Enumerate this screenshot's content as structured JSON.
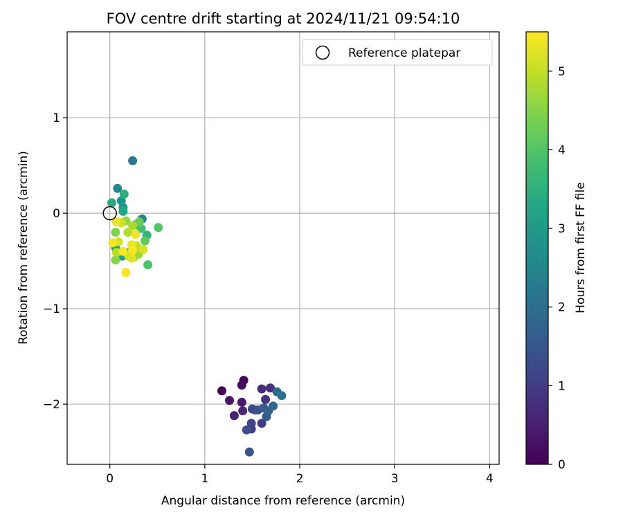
{
  "chart_data": {
    "type": "scatter",
    "title": "FOV centre drift starting at 2024/11/21 09:54:10",
    "xlabel": "Angular distance from reference (arcmin)",
    "ylabel": "Rotation from reference (arcmin)",
    "xlim": [
      -0.45,
      4.1
    ],
    "ylim": [
      -2.63,
      1.9
    ],
    "xticks": [
      "0",
      "1",
      "2",
      "3",
      "4"
    ],
    "yticks": [
      "−2",
      "−1",
      "0",
      "1"
    ],
    "grid": true,
    "legend": {
      "placement": "top-right",
      "label": "Reference platepar"
    },
    "reference_point": {
      "x": 0.0,
      "y": 0.0
    },
    "colorbar": {
      "label": "Hours from first FF file",
      "range": [
        0,
        5.5
      ],
      "ticks": [
        "0",
        "1",
        "2",
        "3",
        "4",
        "5"
      ],
      "colormap": "viridis"
    },
    "points": [
      {
        "x": 1.18,
        "y": -1.86,
        "hours": 0.0
      },
      {
        "x": 1.41,
        "y": -1.75,
        "hours": 0.05
      },
      {
        "x": 1.39,
        "y": -1.8,
        "hours": 0.15
      },
      {
        "x": 1.26,
        "y": -1.96,
        "hours": 0.35
      },
      {
        "x": 1.39,
        "y": -1.98,
        "hours": 0.4
      },
      {
        "x": 1.31,
        "y": -2.12,
        "hours": 0.55
      },
      {
        "x": 1.4,
        "y": -2.07,
        "hours": 0.6
      },
      {
        "x": 1.6,
        "y": -1.84,
        "hours": 0.7
      },
      {
        "x": 1.69,
        "y": -1.83,
        "hours": 0.75
      },
      {
        "x": 1.64,
        "y": -1.95,
        "hours": 0.85
      },
      {
        "x": 1.6,
        "y": -2.2,
        "hours": 0.95
      },
      {
        "x": 1.49,
        "y": -2.26,
        "hours": 1.0
      },
      {
        "x": 1.49,
        "y": -2.2,
        "hours": 1.1
      },
      {
        "x": 1.53,
        "y": -2.06,
        "hours": 1.15
      },
      {
        "x": 1.5,
        "y": -2.05,
        "hours": 1.25
      },
      {
        "x": 1.44,
        "y": -2.27,
        "hours": 1.3
      },
      {
        "x": 1.56,
        "y": -2.06,
        "hours": 1.35
      },
      {
        "x": 1.47,
        "y": -2.5,
        "hours": 1.45
      },
      {
        "x": 1.65,
        "y": -2.13,
        "hours": 1.55
      },
      {
        "x": 1.62,
        "y": -2.04,
        "hours": 1.6
      },
      {
        "x": 1.67,
        "y": -2.07,
        "hours": 1.7
      },
      {
        "x": 1.72,
        "y": -2.02,
        "hours": 1.8
      },
      {
        "x": 1.76,
        "y": -1.87,
        "hours": 1.9
      },
      {
        "x": 1.81,
        "y": -1.91,
        "hours": 2.0
      },
      {
        "x": 0.24,
        "y": 0.55,
        "hours": 2.2
      },
      {
        "x": 0.34,
        "y": -0.06,
        "hours": 2.45
      },
      {
        "x": 0.08,
        "y": 0.26,
        "hours": 2.6
      },
      {
        "x": 0.27,
        "y": -0.12,
        "hours": 2.7
      },
      {
        "x": 0.12,
        "y": 0.13,
        "hours": 2.85
      },
      {
        "x": 0.14,
        "y": 0.06,
        "hours": 2.95
      },
      {
        "x": 0.06,
        "y": -0.36,
        "hours": 3.05
      },
      {
        "x": 0.13,
        "y": -0.45,
        "hours": 3.15
      },
      {
        "x": 0.14,
        "y": 0.02,
        "hours": 3.3
      },
      {
        "x": 0.02,
        "y": 0.11,
        "hours": 3.4
      },
      {
        "x": 0.15,
        "y": 0.2,
        "hours": 3.5
      },
      {
        "x": 0.39,
        "y": -0.23,
        "hours": 3.6
      },
      {
        "x": 0.2,
        "y": -0.41,
        "hours": 3.7
      },
      {
        "x": 0.33,
        "y": -0.16,
        "hours": 3.85
      },
      {
        "x": 0.4,
        "y": -0.54,
        "hours": 3.95
      },
      {
        "x": 0.51,
        "y": -0.15,
        "hours": 4.05
      },
      {
        "x": 0.37,
        "y": -0.29,
        "hours": 4.15
      },
      {
        "x": 0.31,
        "y": -0.09,
        "hours": 4.25
      },
      {
        "x": 0.25,
        "y": -0.46,
        "hours": 4.35
      },
      {
        "x": 0.06,
        "y": -0.2,
        "hours": 4.45
      },
      {
        "x": 0.06,
        "y": -0.49,
        "hours": 4.5
      },
      {
        "x": 0.17,
        "y": -0.08,
        "hours": 4.6
      },
      {
        "x": 0.3,
        "y": -0.43,
        "hours": 4.7
      },
      {
        "x": 0.24,
        "y": -0.13,
        "hours": 4.8
      },
      {
        "x": 0.19,
        "y": -0.2,
        "hours": 4.85
      },
      {
        "x": 0.07,
        "y": -0.41,
        "hours": 4.9
      },
      {
        "x": 0.28,
        "y": -0.34,
        "hours": 5.0
      },
      {
        "x": 0.2,
        "y": -0.45,
        "hours": 5.05
      },
      {
        "x": 0.12,
        "y": -0.1,
        "hours": 5.1
      },
      {
        "x": 0.35,
        "y": -0.38,
        "hours": 5.15
      },
      {
        "x": 0.09,
        "y": -0.3,
        "hours": 5.2
      },
      {
        "x": 0.23,
        "y": -0.47,
        "hours": 5.25
      },
      {
        "x": 0.07,
        "y": -0.09,
        "hours": 5.3
      },
      {
        "x": 0.23,
        "y": -0.33,
        "hours": 5.33
      },
      {
        "x": 0.27,
        "y": -0.22,
        "hours": 5.36
      },
      {
        "x": 0.03,
        "y": -0.31,
        "hours": 5.4
      },
      {
        "x": 0.17,
        "y": -0.62,
        "hours": 5.43
      },
      {
        "x": 0.24,
        "y": -0.39,
        "hours": 5.46
      },
      {
        "x": 0.14,
        "y": -0.4,
        "hours": 5.5
      }
    ]
  }
}
